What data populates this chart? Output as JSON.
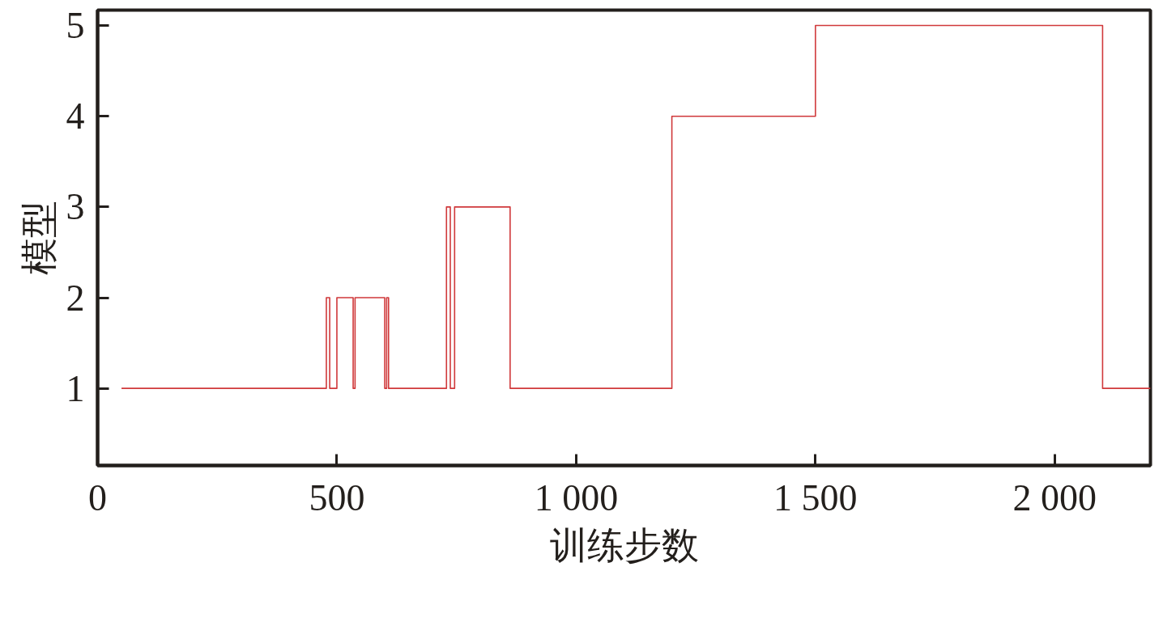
{
  "chart_data": {
    "type": "step",
    "xlabel": "训练步数",
    "ylabel": "模型",
    "x": [
      50,
      478,
      485,
      500,
      534,
      538,
      600,
      604,
      608,
      729,
      737,
      746,
      862,
      1200,
      1500,
      2100,
      2200
    ],
    "series": [
      {
        "color": "#d0393b",
        "values": [
          1,
          2,
          1,
          2,
          1,
          2,
          1,
          2,
          1,
          3,
          1,
          3,
          1,
          4,
          5,
          1,
          1
        ]
      }
    ],
    "xlim": [
      0,
      2200
    ],
    "ylim": [
      0.15,
      5.17
    ],
    "xticks": [
      0,
      500,
      {
        "value": 1000,
        "label": "1 000"
      },
      {
        "value": 1500,
        "label": "1 500"
      },
      {
        "value": 2000,
        "label": "2 000"
      }
    ],
    "yticks": [
      1,
      2,
      3,
      4,
      5
    ],
    "grid": false,
    "line_style": "solid"
  }
}
